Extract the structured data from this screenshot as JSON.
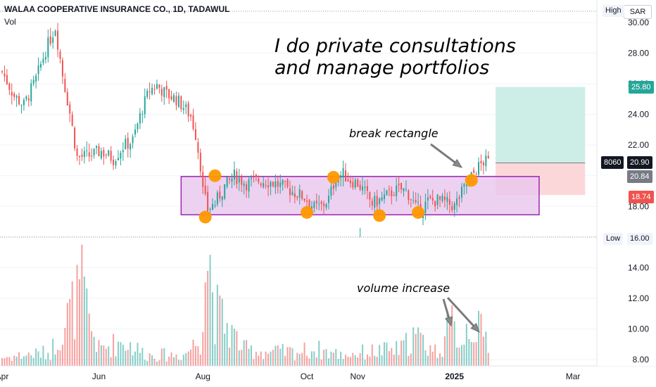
{
  "header": {
    "title": "WALAA COOPERATIVE INSURANCE CO., 1D, TADAWUL",
    "volume_label": "Vol",
    "currency": "SAR"
  },
  "annotations": {
    "main_text_line1": "I do private consultations",
    "main_text_line2": "and manage portfolios",
    "break_text": "break rectangle",
    "volume_text": "volume increase"
  },
  "price_scale": {
    "high_label": "High",
    "low_label": "Low",
    "low_value": "16.00",
    "take_profit": "25.80",
    "symbol_code": "8060",
    "last_price": "20.90",
    "entry_price": "20.84",
    "stop_loss": "18.74"
  },
  "colors": {
    "up": "#26a69a",
    "down": "#ef5350",
    "rectangle_fill": "#e8c6ee",
    "rectangle_border": "#9c27b0",
    "marker": "#ff9800",
    "profit_zone": "#cdeee6",
    "loss_zone": "#fcd7da"
  },
  "chart_data": {
    "type": "candlestick",
    "title": "WALAA COOPERATIVE INSURANCE CO., 1D, TADAWUL",
    "y_ticks": [
      8,
      10,
      12,
      14,
      16,
      18,
      20,
      22,
      24,
      26,
      28,
      30
    ],
    "ylim": [
      7.5,
      31
    ],
    "x_ticks": [
      "Apr",
      "Jun",
      "Aug",
      "Oct",
      "Nov",
      "2025",
      "Mar"
    ],
    "x_ticks_index": [
      0,
      40,
      83,
      126,
      147,
      187,
      236
    ],
    "price_path": [
      [
        0,
        26.8
      ],
      [
        5,
        25.2
      ],
      [
        9,
        24.6
      ],
      [
        14,
        26.3
      ],
      [
        18,
        28.2
      ],
      [
        22,
        29.7
      ],
      [
        25,
        26.6
      ],
      [
        28,
        24.1
      ],
      [
        31,
        21.2
      ],
      [
        36,
        21.3
      ],
      [
        41,
        21.6
      ],
      [
        46,
        21.1
      ],
      [
        50,
        21.9
      ],
      [
        54,
        22.3
      ],
      [
        58,
        24.4
      ],
      [
        61,
        25.6
      ],
      [
        64,
        25.9
      ],
      [
        68,
        25.3
      ],
      [
        72,
        25.0
      ],
      [
        75,
        24.5
      ],
      [
        78,
        23.9
      ],
      [
        80,
        22.7
      ],
      [
        82,
        20.7
      ],
      [
        83,
        19.0
      ],
      [
        85,
        17.8
      ],
      [
        88,
        18.2
      ],
      [
        92,
        19.3
      ],
      [
        96,
        20.0
      ],
      [
        101,
        19.5
      ],
      [
        106,
        19.7
      ],
      [
        111,
        19.6
      ],
      [
        116,
        19.3
      ],
      [
        121,
        18.9
      ],
      [
        125,
        18.6
      ],
      [
        129,
        17.9
      ],
      [
        132,
        18.0
      ],
      [
        135,
        18.5
      ],
      [
        138,
        19.9
      ],
      [
        141,
        20.1
      ],
      [
        144,
        19.7
      ],
      [
        147,
        19.5
      ],
      [
        150,
        18.9
      ],
      [
        153,
        18.2
      ],
      [
        156,
        18.4
      ],
      [
        159,
        18.7
      ],
      [
        162,
        19.0
      ],
      [
        165,
        19.1
      ],
      [
        167,
        19.0
      ],
      [
        169,
        18.6
      ],
      [
        171,
        17.9
      ],
      [
        173,
        17.8
      ],
      [
        176,
        18.3
      ],
      [
        180,
        18.4
      ],
      [
        184,
        18.2
      ],
      [
        187,
        18.0
      ],
      [
        190,
        18.9
      ],
      [
        193,
        19.7
      ],
      [
        196,
        20.4
      ],
      [
        199,
        20.9
      ],
      [
        201,
        20.9
      ]
    ],
    "volume_path": [
      [
        0,
        0.3
      ],
      [
        10,
        0.4
      ],
      [
        20,
        0.5
      ],
      [
        33,
        2.8
      ],
      [
        36,
        1.6
      ],
      [
        40,
        0.6
      ],
      [
        50,
        0.9
      ],
      [
        60,
        0.4
      ],
      [
        75,
        0.4
      ],
      [
        82,
        1.0
      ],
      [
        84,
        4.0
      ],
      [
        86,
        3.7
      ],
      [
        88,
        2.0
      ],
      [
        90,
        1.8
      ],
      [
        100,
        0.6
      ],
      [
        110,
        0.5
      ],
      [
        120,
        0.5
      ],
      [
        130,
        0.6
      ],
      [
        140,
        0.4
      ],
      [
        150,
        0.5
      ],
      [
        165,
        0.6
      ],
      [
        170,
        1.1
      ],
      [
        180,
        0.5
      ],
      [
        186,
        1.5
      ],
      [
        190,
        0.9
      ],
      [
        193,
        1.6
      ],
      [
        196,
        1.4
      ],
      [
        201,
        0.9
      ]
    ],
    "volume_ticks": [
      8,
      10,
      12,
      14
    ],
    "rectangle": {
      "x_start": 74,
      "x_end": 222,
      "y_top": 19.95,
      "y_bottom": 17.45
    },
    "markers": [
      [
        84,
        17.3
      ],
      [
        88,
        20.0
      ],
      [
        126,
        17.6
      ],
      [
        137,
        19.9
      ],
      [
        156,
        17.4
      ],
      [
        172,
        17.6
      ],
      [
        194,
        19.7
      ]
    ],
    "position": {
      "x_start": 204,
      "x_end": 241,
      "entry": 20.84,
      "target": 25.8,
      "stop": 18.74
    }
  }
}
